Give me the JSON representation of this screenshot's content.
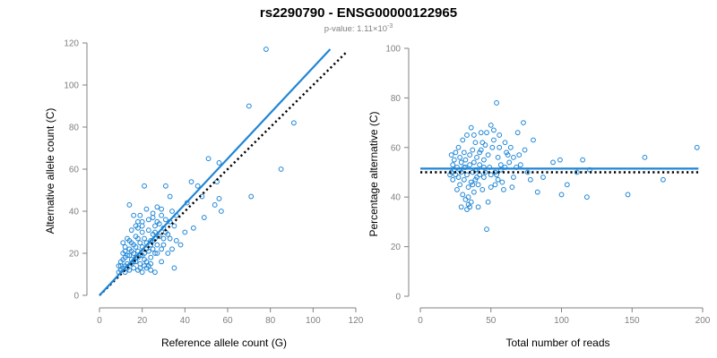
{
  "colors": {
    "points": "#1f86d6",
    "fit": "#1f86d6",
    "reference": "#000000",
    "axes": "#808080"
  },
  "header": {
    "title": "rs2290790 - ENSG00000122965",
    "subtitle_prefix": "p-value: 1.11×10",
    "subtitle_exponent": "-3"
  },
  "chart_data": [
    {
      "type": "scatter",
      "xlabel": "Reference allele count (G)",
      "ylabel": "Alternative allele count (C)",
      "xlim": [
        0,
        120
      ],
      "ylim": [
        0,
        120
      ],
      "xticks": [
        0,
        20,
        40,
        60,
        80,
        100,
        120
      ],
      "yticks": [
        0,
        20,
        40,
        60,
        80,
        100,
        120
      ],
      "grid": false,
      "fit_line": {
        "x": [
          0,
          108
        ],
        "y": [
          0,
          117
        ]
      },
      "reference_line": {
        "x": [
          0,
          116
        ],
        "y": [
          0,
          116
        ]
      },
      "points": [
        [
          78,
          117
        ],
        [
          70,
          90
        ],
        [
          91,
          82
        ],
        [
          85,
          60
        ],
        [
          71,
          47
        ],
        [
          56,
          63
        ],
        [
          51,
          65
        ],
        [
          55,
          54
        ],
        [
          56,
          46
        ],
        [
          54,
          43
        ],
        [
          57,
          40
        ],
        [
          49,
          37
        ],
        [
          46,
          52
        ],
        [
          43,
          54
        ],
        [
          41,
          44
        ],
        [
          48,
          47
        ],
        [
          44,
          32
        ],
        [
          40,
          30
        ],
        [
          36,
          38
        ],
        [
          33,
          47
        ],
        [
          31,
          52
        ],
        [
          21,
          52
        ],
        [
          29,
          41
        ],
        [
          33,
          35
        ],
        [
          35,
          13
        ],
        [
          30,
          32
        ],
        [
          27,
          42
        ],
        [
          25,
          39
        ],
        [
          22,
          41
        ],
        [
          19,
          38
        ],
        [
          18,
          35
        ],
        [
          14,
          43
        ],
        [
          20,
          33
        ],
        [
          23,
          36
        ],
        [
          26,
          33
        ],
        [
          28,
          34
        ],
        [
          31,
          30
        ],
        [
          24,
          26
        ],
        [
          21,
          27
        ],
        [
          19,
          25
        ],
        [
          17,
          28
        ],
        [
          15,
          31
        ],
        [
          13,
          27
        ],
        [
          12,
          23
        ],
        [
          11,
          25
        ],
        [
          14,
          22
        ],
        [
          16,
          20
        ],
        [
          18,
          21
        ],
        [
          20,
          19
        ],
        [
          22,
          22
        ],
        [
          24,
          18
        ],
        [
          26,
          20
        ],
        [
          29,
          16
        ],
        [
          27,
          24
        ],
        [
          25,
          29
        ],
        [
          33,
          27
        ],
        [
          36,
          26
        ],
        [
          38,
          24
        ],
        [
          30,
          24
        ],
        [
          32,
          20
        ],
        [
          34,
          22
        ],
        [
          12,
          18
        ],
        [
          10,
          16
        ],
        [
          9,
          14
        ],
        [
          11,
          13
        ],
        [
          13,
          15
        ],
        [
          15,
          17
        ],
        [
          17,
          16
        ],
        [
          19,
          15
        ],
        [
          21,
          17
        ],
        [
          23,
          14
        ],
        [
          10,
          12
        ],
        [
          12,
          11
        ],
        [
          14,
          12
        ],
        [
          16,
          13
        ],
        [
          18,
          12
        ],
        [
          20,
          11
        ],
        [
          22,
          13
        ],
        [
          24,
          12
        ],
        [
          26,
          11
        ],
        [
          11,
          20
        ],
        [
          13,
          19
        ],
        [
          15,
          21
        ],
        [
          17,
          18
        ],
        [
          19,
          19
        ],
        [
          21,
          20
        ],
        [
          23,
          21
        ],
        [
          25,
          22
        ],
        [
          27,
          20
        ],
        [
          29,
          22
        ],
        [
          14,
          26
        ],
        [
          16,
          24
        ],
        [
          18,
          27
        ],
        [
          20,
          23
        ],
        [
          22,
          25
        ],
        [
          24,
          24
        ],
        [
          26,
          27
        ],
        [
          28,
          28
        ],
        [
          30,
          27
        ],
        [
          32,
          29
        ],
        [
          17,
          33
        ],
        [
          20,
          35
        ],
        [
          23,
          31
        ],
        [
          26,
          30
        ],
        [
          16,
          38
        ],
        [
          18,
          32
        ],
        [
          25,
          37
        ],
        [
          29,
          38
        ],
        [
          34,
          40
        ],
        [
          35,
          33
        ],
        [
          12,
          14
        ],
        [
          13,
          13
        ],
        [
          15,
          15
        ],
        [
          11,
          17
        ],
        [
          14,
          19
        ],
        [
          16,
          16
        ],
        [
          18,
          18
        ],
        [
          22,
          16
        ],
        [
          24,
          15
        ],
        [
          19,
          13
        ],
        [
          21,
          14
        ],
        [
          9,
          11
        ],
        [
          10,
          14
        ],
        [
          12,
          21
        ],
        [
          15,
          25
        ],
        [
          17,
          23
        ],
        [
          20,
          30
        ],
        [
          25,
          26
        ],
        [
          27,
          35
        ],
        [
          31,
          36
        ]
      ]
    },
    {
      "type": "scatter",
      "xlabel": "Total number of reads",
      "ylabel": "Percentage alternative (C)",
      "xlim": [
        0,
        200
      ],
      "ylim": [
        0,
        100
      ],
      "xticks": [
        0,
        50,
        100,
        150,
        200
      ],
      "yticks": [
        0,
        20,
        40,
        60,
        80,
        100
      ],
      "grid": false,
      "fit_line": {
        "x": [
          0,
          197
        ],
        "y": [
          51.5,
          51.5
        ]
      },
      "reference_line": {
        "x": [
          0,
          197
        ],
        "y": [
          50,
          50
        ]
      },
      "points": [
        [
          196,
          60
        ],
        [
          172,
          47
        ],
        [
          159,
          56
        ],
        [
          147,
          41
        ],
        [
          118,
          40
        ],
        [
          120,
          51
        ],
        [
          115,
          55
        ],
        [
          111,
          50
        ],
        [
          104,
          45
        ],
        [
          100,
          41
        ],
        [
          99,
          55
        ],
        [
          94,
          54
        ],
        [
          87,
          48
        ],
        [
          83,
          42
        ],
        [
          80,
          63
        ],
        [
          78,
          47
        ],
        [
          73,
          70
        ],
        [
          70,
          57
        ],
        [
          69,
          66
        ],
        [
          68,
          52
        ],
        [
          66,
          48
        ],
        [
          64,
          60
        ],
        [
          62,
          57
        ],
        [
          60,
          62
        ],
        [
          60,
          52
        ],
        [
          58,
          46
        ],
        [
          57,
          51
        ],
        [
          56,
          65
        ],
        [
          55,
          56
        ],
        [
          54,
          78
        ],
        [
          54,
          49
        ],
        [
          53,
          45
        ],
        [
          52,
          63
        ],
        [
          51,
          60
        ],
        [
          50,
          69
        ],
        [
          50,
          44
        ],
        [
          49,
          52
        ],
        [
          48,
          57
        ],
        [
          48,
          38
        ],
        [
          47,
          27
        ],
        [
          46,
          50
        ],
        [
          46,
          61
        ],
        [
          45,
          55
        ],
        [
          45,
          48
        ],
        [
          44,
          43
        ],
        [
          43,
          59
        ],
        [
          43,
          66
        ],
        [
          42,
          53
        ],
        [
          42,
          49
        ],
        [
          41,
          36
        ],
        [
          41,
          45
        ],
        [
          40,
          56
        ],
        [
          40,
          51
        ],
        [
          39,
          62
        ],
        [
          39,
          47
        ],
        [
          38,
          54
        ],
        [
          38,
          42
        ],
        [
          37,
          59
        ],
        [
          37,
          50
        ],
        [
          36,
          68
        ],
        [
          36,
          46
        ],
        [
          35,
          53
        ],
        [
          35,
          57
        ],
        [
          34,
          44
        ],
        [
          34,
          40
        ],
        [
          33,
          65
        ],
        [
          33,
          49
        ],
        [
          32,
          52
        ],
        [
          32,
          55
        ],
        [
          31,
          58
        ],
        [
          31,
          47
        ],
        [
          30,
          63
        ],
        [
          30,
          41
        ],
        [
          29,
          50
        ],
        [
          29,
          54
        ],
        [
          28,
          56
        ],
        [
          28,
          45
        ],
        [
          27,
          48
        ],
        [
          27,
          60
        ],
        [
          26,
          52
        ],
        [
          26,
          43
        ],
        [
          25,
          58
        ],
        [
          25,
          49
        ],
        [
          24,
          51
        ],
        [
          24,
          55
        ],
        [
          23,
          47
        ],
        [
          23,
          53
        ],
        [
          22,
          50
        ],
        [
          22,
          57
        ],
        [
          21,
          49
        ],
        [
          33,
          35
        ],
        [
          34,
          37
        ],
        [
          35,
          36
        ],
        [
          36,
          38
        ],
        [
          32,
          39
        ],
        [
          29,
          36
        ],
        [
          38,
          65
        ],
        [
          44,
          62
        ],
        [
          47,
          66
        ],
        [
          52,
          67
        ],
        [
          56,
          60
        ],
        [
          61,
          58
        ],
        [
          63,
          54
        ],
        [
          66,
          56
        ],
        [
          71,
          53
        ],
        [
          74,
          59
        ],
        [
          76,
          50
        ],
        [
          65,
          44
        ],
        [
          59,
          43
        ],
        [
          55,
          47
        ],
        [
          40,
          48
        ],
        [
          42,
          58
        ],
        [
          37,
          45
        ],
        [
          31,
          52
        ],
        [
          28,
          51
        ],
        [
          39,
          51
        ],
        [
          45,
          52
        ],
        [
          50,
          49
        ],
        [
          53,
          50
        ],
        [
          57,
          53
        ]
      ]
    }
  ]
}
